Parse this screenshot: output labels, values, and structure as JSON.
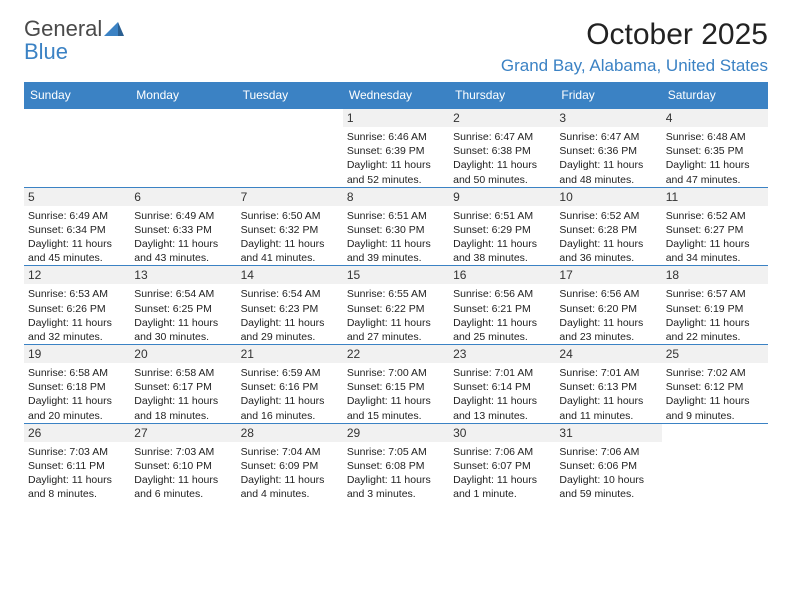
{
  "logo": {
    "word1": "General",
    "word2": "Blue"
  },
  "header": {
    "month_title": "October 2025",
    "location": "Grand Bay, Alabama, United States"
  },
  "colors": {
    "accent": "#3b82c4",
    "header_bg": "#3b82c4",
    "header_text": "#ffffff",
    "daynum_bg": "#f1f1f1",
    "text": "#222222",
    "logo_gray": "#4a4a4a"
  },
  "day_headers": [
    "Sunday",
    "Monday",
    "Tuesday",
    "Wednesday",
    "Thursday",
    "Friday",
    "Saturday"
  ],
  "weeks": [
    [
      {
        "num": "",
        "sunrise": "",
        "sunset": "",
        "daylight": ""
      },
      {
        "num": "",
        "sunrise": "",
        "sunset": "",
        "daylight": ""
      },
      {
        "num": "",
        "sunrise": "",
        "sunset": "",
        "daylight": ""
      },
      {
        "num": "1",
        "sunrise": "Sunrise: 6:46 AM",
        "sunset": "Sunset: 6:39 PM",
        "daylight": "Daylight: 11 hours and 52 minutes."
      },
      {
        "num": "2",
        "sunrise": "Sunrise: 6:47 AM",
        "sunset": "Sunset: 6:38 PM",
        "daylight": "Daylight: 11 hours and 50 minutes."
      },
      {
        "num": "3",
        "sunrise": "Sunrise: 6:47 AM",
        "sunset": "Sunset: 6:36 PM",
        "daylight": "Daylight: 11 hours and 48 minutes."
      },
      {
        "num": "4",
        "sunrise": "Sunrise: 6:48 AM",
        "sunset": "Sunset: 6:35 PM",
        "daylight": "Daylight: 11 hours and 47 minutes."
      }
    ],
    [
      {
        "num": "5",
        "sunrise": "Sunrise: 6:49 AM",
        "sunset": "Sunset: 6:34 PM",
        "daylight": "Daylight: 11 hours and 45 minutes."
      },
      {
        "num": "6",
        "sunrise": "Sunrise: 6:49 AM",
        "sunset": "Sunset: 6:33 PM",
        "daylight": "Daylight: 11 hours and 43 minutes."
      },
      {
        "num": "7",
        "sunrise": "Sunrise: 6:50 AM",
        "sunset": "Sunset: 6:32 PM",
        "daylight": "Daylight: 11 hours and 41 minutes."
      },
      {
        "num": "8",
        "sunrise": "Sunrise: 6:51 AM",
        "sunset": "Sunset: 6:30 PM",
        "daylight": "Daylight: 11 hours and 39 minutes."
      },
      {
        "num": "9",
        "sunrise": "Sunrise: 6:51 AM",
        "sunset": "Sunset: 6:29 PM",
        "daylight": "Daylight: 11 hours and 38 minutes."
      },
      {
        "num": "10",
        "sunrise": "Sunrise: 6:52 AM",
        "sunset": "Sunset: 6:28 PM",
        "daylight": "Daylight: 11 hours and 36 minutes."
      },
      {
        "num": "11",
        "sunrise": "Sunrise: 6:52 AM",
        "sunset": "Sunset: 6:27 PM",
        "daylight": "Daylight: 11 hours and 34 minutes."
      }
    ],
    [
      {
        "num": "12",
        "sunrise": "Sunrise: 6:53 AM",
        "sunset": "Sunset: 6:26 PM",
        "daylight": "Daylight: 11 hours and 32 minutes."
      },
      {
        "num": "13",
        "sunrise": "Sunrise: 6:54 AM",
        "sunset": "Sunset: 6:25 PM",
        "daylight": "Daylight: 11 hours and 30 minutes."
      },
      {
        "num": "14",
        "sunrise": "Sunrise: 6:54 AM",
        "sunset": "Sunset: 6:23 PM",
        "daylight": "Daylight: 11 hours and 29 minutes."
      },
      {
        "num": "15",
        "sunrise": "Sunrise: 6:55 AM",
        "sunset": "Sunset: 6:22 PM",
        "daylight": "Daylight: 11 hours and 27 minutes."
      },
      {
        "num": "16",
        "sunrise": "Sunrise: 6:56 AM",
        "sunset": "Sunset: 6:21 PM",
        "daylight": "Daylight: 11 hours and 25 minutes."
      },
      {
        "num": "17",
        "sunrise": "Sunrise: 6:56 AM",
        "sunset": "Sunset: 6:20 PM",
        "daylight": "Daylight: 11 hours and 23 minutes."
      },
      {
        "num": "18",
        "sunrise": "Sunrise: 6:57 AM",
        "sunset": "Sunset: 6:19 PM",
        "daylight": "Daylight: 11 hours and 22 minutes."
      }
    ],
    [
      {
        "num": "19",
        "sunrise": "Sunrise: 6:58 AM",
        "sunset": "Sunset: 6:18 PM",
        "daylight": "Daylight: 11 hours and 20 minutes."
      },
      {
        "num": "20",
        "sunrise": "Sunrise: 6:58 AM",
        "sunset": "Sunset: 6:17 PM",
        "daylight": "Daylight: 11 hours and 18 minutes."
      },
      {
        "num": "21",
        "sunrise": "Sunrise: 6:59 AM",
        "sunset": "Sunset: 6:16 PM",
        "daylight": "Daylight: 11 hours and 16 minutes."
      },
      {
        "num": "22",
        "sunrise": "Sunrise: 7:00 AM",
        "sunset": "Sunset: 6:15 PM",
        "daylight": "Daylight: 11 hours and 15 minutes."
      },
      {
        "num": "23",
        "sunrise": "Sunrise: 7:01 AM",
        "sunset": "Sunset: 6:14 PM",
        "daylight": "Daylight: 11 hours and 13 minutes."
      },
      {
        "num": "24",
        "sunrise": "Sunrise: 7:01 AM",
        "sunset": "Sunset: 6:13 PM",
        "daylight": "Daylight: 11 hours and 11 minutes."
      },
      {
        "num": "25",
        "sunrise": "Sunrise: 7:02 AM",
        "sunset": "Sunset: 6:12 PM",
        "daylight": "Daylight: 11 hours and 9 minutes."
      }
    ],
    [
      {
        "num": "26",
        "sunrise": "Sunrise: 7:03 AM",
        "sunset": "Sunset: 6:11 PM",
        "daylight": "Daylight: 11 hours and 8 minutes."
      },
      {
        "num": "27",
        "sunrise": "Sunrise: 7:03 AM",
        "sunset": "Sunset: 6:10 PM",
        "daylight": "Daylight: 11 hours and 6 minutes."
      },
      {
        "num": "28",
        "sunrise": "Sunrise: 7:04 AM",
        "sunset": "Sunset: 6:09 PM",
        "daylight": "Daylight: 11 hours and 4 minutes."
      },
      {
        "num": "29",
        "sunrise": "Sunrise: 7:05 AM",
        "sunset": "Sunset: 6:08 PM",
        "daylight": "Daylight: 11 hours and 3 minutes."
      },
      {
        "num": "30",
        "sunrise": "Sunrise: 7:06 AM",
        "sunset": "Sunset: 6:07 PM",
        "daylight": "Daylight: 11 hours and 1 minute."
      },
      {
        "num": "31",
        "sunrise": "Sunrise: 7:06 AM",
        "sunset": "Sunset: 6:06 PM",
        "daylight": "Daylight: 10 hours and 59 minutes."
      },
      {
        "num": "",
        "sunrise": "",
        "sunset": "",
        "daylight": ""
      }
    ]
  ]
}
